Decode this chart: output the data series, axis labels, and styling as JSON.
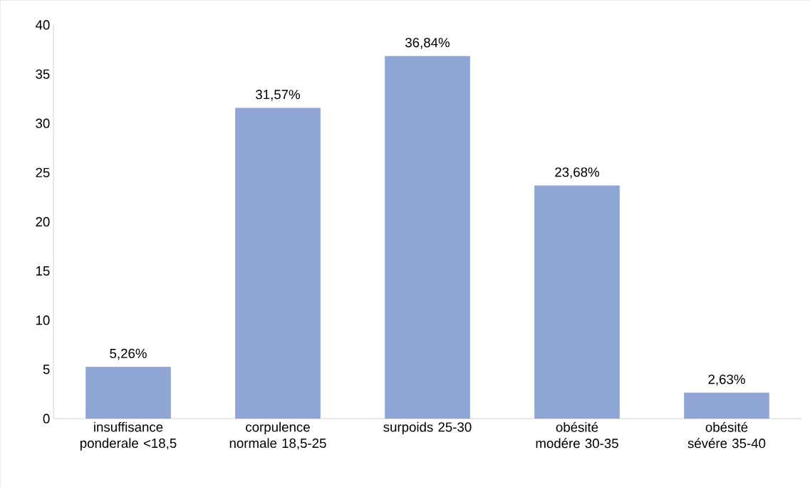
{
  "chart_data": {
    "type": "bar",
    "categories": [
      "insuffisance ponderale <18,5",
      "corpulence normale 18,5-25",
      "surpoids 25-30",
      "obésité modére 30-35",
      "obésité sévére 35-40"
    ],
    "values": [
      5.26,
      31.57,
      36.84,
      23.68,
      2.63
    ],
    "value_labels": [
      "5,26%",
      "31,57%",
      "36,84%",
      "23,68%",
      "2,63%"
    ],
    "color": "#8fa5d5",
    "ylim": [
      0,
      40
    ],
    "yticks": [
      0,
      5,
      10,
      15,
      20,
      25,
      30,
      35,
      40
    ],
    "grid": false
  }
}
